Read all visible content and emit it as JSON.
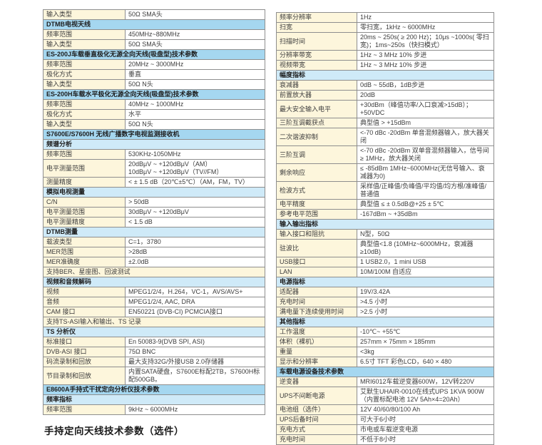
{
  "footer": {
    "heading": "手持定向天线技术参数（选件）"
  },
  "colors": {
    "section_header_bg": "#a5d7f0",
    "subsection_header_bg": "#cfeaf8",
    "label_cell_bg": "#fdf6dc",
    "value_cell_bg": "#ffffff",
    "border": "#8e8e8e"
  },
  "left_table": {
    "rows": [
      {
        "type": "data",
        "label": "输入类型",
        "value": "50Ω SMA头"
      },
      {
        "type": "section",
        "label": "DTMB电视天线"
      },
      {
        "type": "data",
        "label": "频率范围",
        "value": "450MHz~880MHz"
      },
      {
        "type": "data",
        "label": "输入类型",
        "value": "50Ω SMA头"
      },
      {
        "type": "section",
        "label": "ES-200J车载垂直极化无源全向天线(吸盘型)技术参数"
      },
      {
        "type": "data",
        "label": "频率范围",
        "value": "20MHz ~ 3000MHz"
      },
      {
        "type": "data",
        "label": "极化方式",
        "value": "垂直"
      },
      {
        "type": "data",
        "label": "输入类型",
        "value": "50Ω N头"
      },
      {
        "type": "section",
        "label": "ES-200H车载水平极化无源全向天线(吸盘型)技术参数"
      },
      {
        "type": "data",
        "label": "频率范围",
        "value": "40MHz ~ 1000MHz"
      },
      {
        "type": "data",
        "label": "极化方式",
        "value": "水平"
      },
      {
        "type": "data",
        "label": "输入类型",
        "value": "50Ω N头"
      },
      {
        "type": "section",
        "label": "S7600E/S7600H 无线广播数字电视监测接收机"
      },
      {
        "type": "subsection",
        "label": "频谱分析"
      },
      {
        "type": "data",
        "label": "频率范围",
        "value": "530KHz-1050MHz"
      },
      {
        "type": "data",
        "label": "电平测量范围",
        "value": "20dBμV ~ +120dBμV（AM）\n10dBμV ~ +120dBμV（TV//FM）"
      },
      {
        "type": "data",
        "label": "测量精度",
        "value": "< ± 1.5 dB（20℃±5℃）（AM，FM，TV）"
      },
      {
        "type": "subsection",
        "label": "模拟电视测量"
      },
      {
        "type": "data",
        "label": "C/N",
        "value": "> 50dB"
      },
      {
        "type": "data",
        "label": "电平测量范围",
        "value": "30dBμV ~ +120dBμV"
      },
      {
        "type": "data",
        "label": "电平测量精度",
        "value": "< 1.5 dB"
      },
      {
        "type": "subsection",
        "label": "DTMB测量"
      },
      {
        "type": "data",
        "label": "载波类型",
        "value": "C=1，3780"
      },
      {
        "type": "data",
        "label": "MER范围",
        "value": ">28dB"
      },
      {
        "type": "data",
        "label": "MER准确度",
        "value": "±2.0dB"
      },
      {
        "type": "note",
        "label": "支持BER、星座图、回波测试"
      },
      {
        "type": "subsection",
        "label": "视频和音频解码"
      },
      {
        "type": "data",
        "label": "视频",
        "value": "MPEG1/2/4，H.264，VC-1，AVS/AVS+"
      },
      {
        "type": "data",
        "label": "音频",
        "value": "MPEG1/2/4, AAC, DRA"
      },
      {
        "type": "data",
        "label": "CAM 接口",
        "value": "EN50221 (DVB-CI) PCMCIA接口"
      },
      {
        "type": "note",
        "label": "支持TS-ASI输入和输出、TS 记录"
      },
      {
        "type": "subsection",
        "label": "TS 分析仪"
      },
      {
        "type": "data",
        "label": "标准接口",
        "value": "En 50083-9(DVB SPI, ASI)"
      },
      {
        "type": "data",
        "label": "DVB-ASI 接口",
        "value": "75Ω BNC"
      },
      {
        "type": "data",
        "label": "码流录制和回放",
        "value": "最大支持32G/外接USB 2.0存储器"
      },
      {
        "type": "data",
        "label": "节目录制和回放",
        "value": "内置SATA硬盘，S7600E标配2TB，S7600H标配500GB。"
      },
      {
        "type": "section",
        "label": "E8600A手持式干扰定向分析仪技术参数"
      },
      {
        "type": "subsection",
        "label": "频率指标"
      },
      {
        "type": "data",
        "label": "频率范围",
        "value": "9kHz ~ 6000MHz"
      }
    ]
  },
  "right_table": {
    "rows": [
      {
        "type": "data",
        "label": "频率分辨率",
        "value": "1Hz"
      },
      {
        "type": "data",
        "label": "扫宽",
        "value": "零扫宽，1kHz ~ 6000MHz"
      },
      {
        "type": "data",
        "label": "扫描时间",
        "value": "20ms ~ 250s( ≥ 200 Hz)；10μs ~1000s( 零扫宽)；1ms~250s（快扫模式）"
      },
      {
        "type": "data",
        "label": "分辨率带宽",
        "value": "1Hz ~ 3 MHz 10% 步进"
      },
      {
        "type": "data",
        "label": "视频带宽",
        "value": "1Hz ~ 3 MHz 10% 步进"
      },
      {
        "type": "subsection",
        "label": "幅度指标"
      },
      {
        "type": "data",
        "label": "衰减器",
        "value": "0dB ~ 55dB，1dB步进"
      },
      {
        "type": "data",
        "label": "前置放大器",
        "value": "20dB"
      },
      {
        "type": "data",
        "label": "最大安全输入电平",
        "value": "+30dBm（峰值功率/入口衰减>15dB）；+50VDC"
      },
      {
        "type": "data",
        "label": "三阶互调截获点",
        "value": "典型值 > +15dBm"
      },
      {
        "type": "data",
        "label": "二次谐波抑制",
        "value": "<-70 dBc -20dBm 单音混频器输入，放大器关闭"
      },
      {
        "type": "data",
        "label": "三阶互调",
        "value": "<-70 dBc -20dBm 双单音混频器输入，信号间 ≥ 1MHz，放大器关闭"
      },
      {
        "type": "data",
        "label": "剩余响应",
        "value": "≤ -85dBm 1MHz~6000MHz(无信号输入、衰减器为0)"
      },
      {
        "type": "data",
        "label": "检波方式",
        "value": "采样值/正峰值/负峰值/平均值/均方根/准峰值/普通值"
      },
      {
        "type": "data",
        "label": "电平精度",
        "value": "典型值 ≤ ± 0.5dB@+25 ± 5℃"
      },
      {
        "type": "data",
        "label": "参考电平范围",
        "value": "-167dBm ~ +35dBm"
      },
      {
        "type": "subsection",
        "label": "输入输出指标"
      },
      {
        "type": "data",
        "label": "输入接口和阻抗",
        "value": "N型，50Ω"
      },
      {
        "type": "data",
        "label": "驻波比",
        "value": "典型值<1.8 (10MHz~6000MHz，衰减器≥10dB)"
      },
      {
        "type": "data",
        "label": "USB接口",
        "value": "1 USB2.0，1 mini USB"
      },
      {
        "type": "data",
        "label": "LAN",
        "value": "10M/100M 自适应"
      },
      {
        "type": "subsection",
        "label": "电源指标"
      },
      {
        "type": "data",
        "label": "适配器",
        "value": "19V/3.42A"
      },
      {
        "type": "data",
        "label": "充电时间",
        "value": ">4.5 小时"
      },
      {
        "type": "data",
        "label": "满电量下连续使用时间",
        "value": ">2.5 小时"
      },
      {
        "type": "subsection",
        "label": "其他指标"
      },
      {
        "type": "data",
        "label": "工作温度",
        "value": "-10℃~ +55℃"
      },
      {
        "type": "data",
        "label": "体积（裸机）",
        "value": "257mm × 75mm × 185mm"
      },
      {
        "type": "data",
        "label": "重量",
        "value": "<3kg"
      },
      {
        "type": "data",
        "label": "显示和分辨率",
        "value": "6.5寸 TFT 彩色LCD，640 × 480"
      },
      {
        "type": "section",
        "label": "车载电源设备技术参数"
      },
      {
        "type": "data",
        "label": "逆变器",
        "value": "MRI6012车载逆变器600W，12V转220V"
      },
      {
        "type": "data",
        "label": "UPS不间断电源",
        "value": "艾默生UHAIR-0010在线式UPS 1KVA 900W（内置标配电池 12V 5Ah×4=20Ah）"
      },
      {
        "type": "data",
        "label": "电池组（选件）",
        "value": "12V 40/60/80/100 Ah"
      },
      {
        "type": "data",
        "label": "UPS后备时间",
        "value": "可大于6小时"
      },
      {
        "type": "data",
        "label": "充电方式",
        "value": "市电或车载逆变电源"
      },
      {
        "type": "data",
        "label": "充电时间",
        "value": "不低于8小时"
      }
    ]
  }
}
